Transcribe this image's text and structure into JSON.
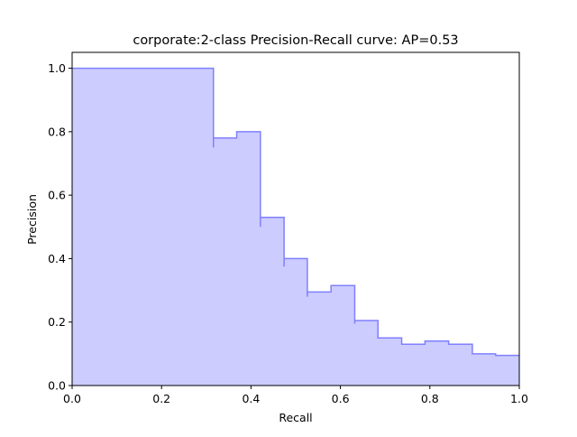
{
  "chart_data": {
    "type": "area",
    "title": "corporate:2-class Precision-Recall curve: AP=0.53",
    "xlabel": "Recall",
    "ylabel": "Precision",
    "xlim": [
      0.0,
      1.0
    ],
    "ylim": [
      0.0,
      1.05
    ],
    "xticks": [
      0.0,
      0.2,
      0.4,
      0.6,
      0.8,
      1.0
    ],
    "xtick_labels": [
      "0.0",
      "0.2",
      "0.4",
      "0.6",
      "0.8",
      "1.0"
    ],
    "yticks": [
      0.0,
      0.2,
      0.4,
      0.6,
      0.8,
      1.0
    ],
    "ytick_labels": [
      "0.0",
      "0.2",
      "0.4",
      "0.6",
      "0.8",
      "1.0"
    ],
    "grid": false,
    "step": "post",
    "fill_color": "#ccccff",
    "line_color": "#8080ff",
    "series": [
      {
        "recall": [
          0.0,
          0.316,
          0.316,
          0.368,
          0.421,
          0.421,
          0.474,
          0.474,
          0.526,
          0.526,
          0.579,
          0.632,
          0.632,
          0.684,
          0.737,
          0.789,
          0.842,
          0.895,
          0.947,
          1.0
        ],
        "precision": [
          1.0,
          0.75,
          0.78,
          0.8,
          0.5,
          0.53,
          0.375,
          0.4,
          0.28,
          0.295,
          0.315,
          0.195,
          0.205,
          0.15,
          0.13,
          0.14,
          0.13,
          0.1,
          0.095,
          0.095
        ]
      }
    ]
  }
}
